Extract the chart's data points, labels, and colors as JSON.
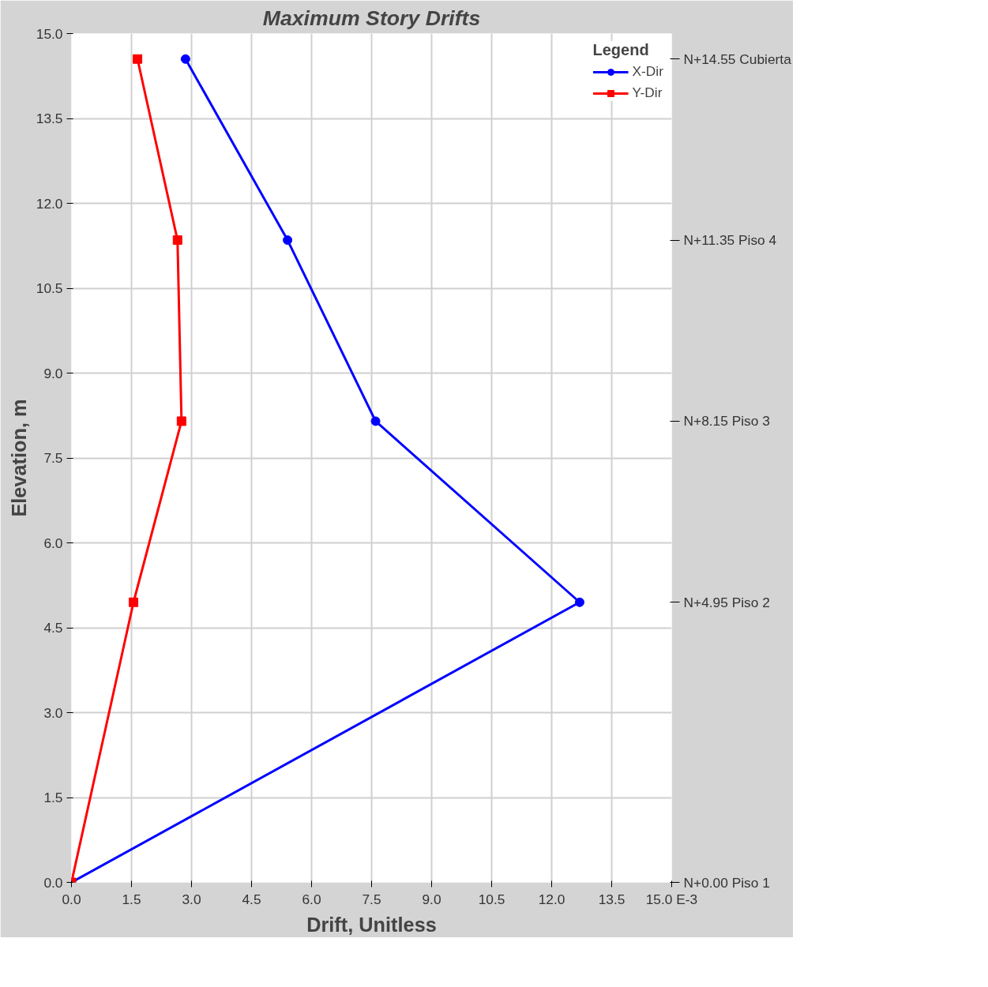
{
  "chart_data": {
    "type": "line",
    "title": "Maximum Story Drifts",
    "xlabel": "Drift, Unitless",
    "ylabel": "Elevation, m",
    "legend_title": "Legend",
    "series": [
      {
        "name": "X-Dir",
        "color": "#0000ff",
        "marker": "circle",
        "x": [
          0,
          12.7,
          7.6,
          5.4,
          2.85
        ],
        "values": [
          0,
          4.95,
          8.15,
          11.35,
          14.55
        ]
      },
      {
        "name": "Y-Dir",
        "color": "#ff0000",
        "marker": "square",
        "x": [
          0,
          1.55,
          2.75,
          2.65,
          1.65
        ],
        "values": [
          0,
          4.95,
          8.15,
          11.35,
          14.55
        ]
      }
    ],
    "xlim": [
      0,
      15
    ],
    "ylim": [
      0,
      15
    ],
    "xticks": [
      {
        "value": 0,
        "label": "0.0"
      },
      1.5,
      {
        "value": 3,
        "label": "3.0"
      },
      4.5,
      {
        "value": 6,
        "label": "6.0"
      },
      7.5,
      {
        "value": 9,
        "label": "9.0"
      },
      10.5,
      {
        "value": 12,
        "label": "12.0"
      },
      13.5,
      {
        "value": 15,
        "label": "15.0 E-3"
      }
    ],
    "yticks": [
      {
        "value": 0,
        "label": "0.0"
      },
      1.5,
      {
        "value": 3,
        "label": "3.0"
      },
      4.5,
      {
        "value": 6,
        "label": "6.0"
      },
      7.5,
      {
        "value": 9,
        "label": "9.0"
      },
      10.5,
      {
        "value": 12,
        "label": "12.0"
      },
      13.5,
      {
        "value": 15,
        "label": "15.0"
      }
    ],
    "annotations": [
      "N+0.00 Piso 1",
      "N+4.95 Piso 2",
      "N+8.15 Piso 3",
      "N+11.35 Piso 4",
      "N+14.55 Cubierta"
    ],
    "grid": true,
    "legend": "top right",
    "line_style": "solid"
  }
}
